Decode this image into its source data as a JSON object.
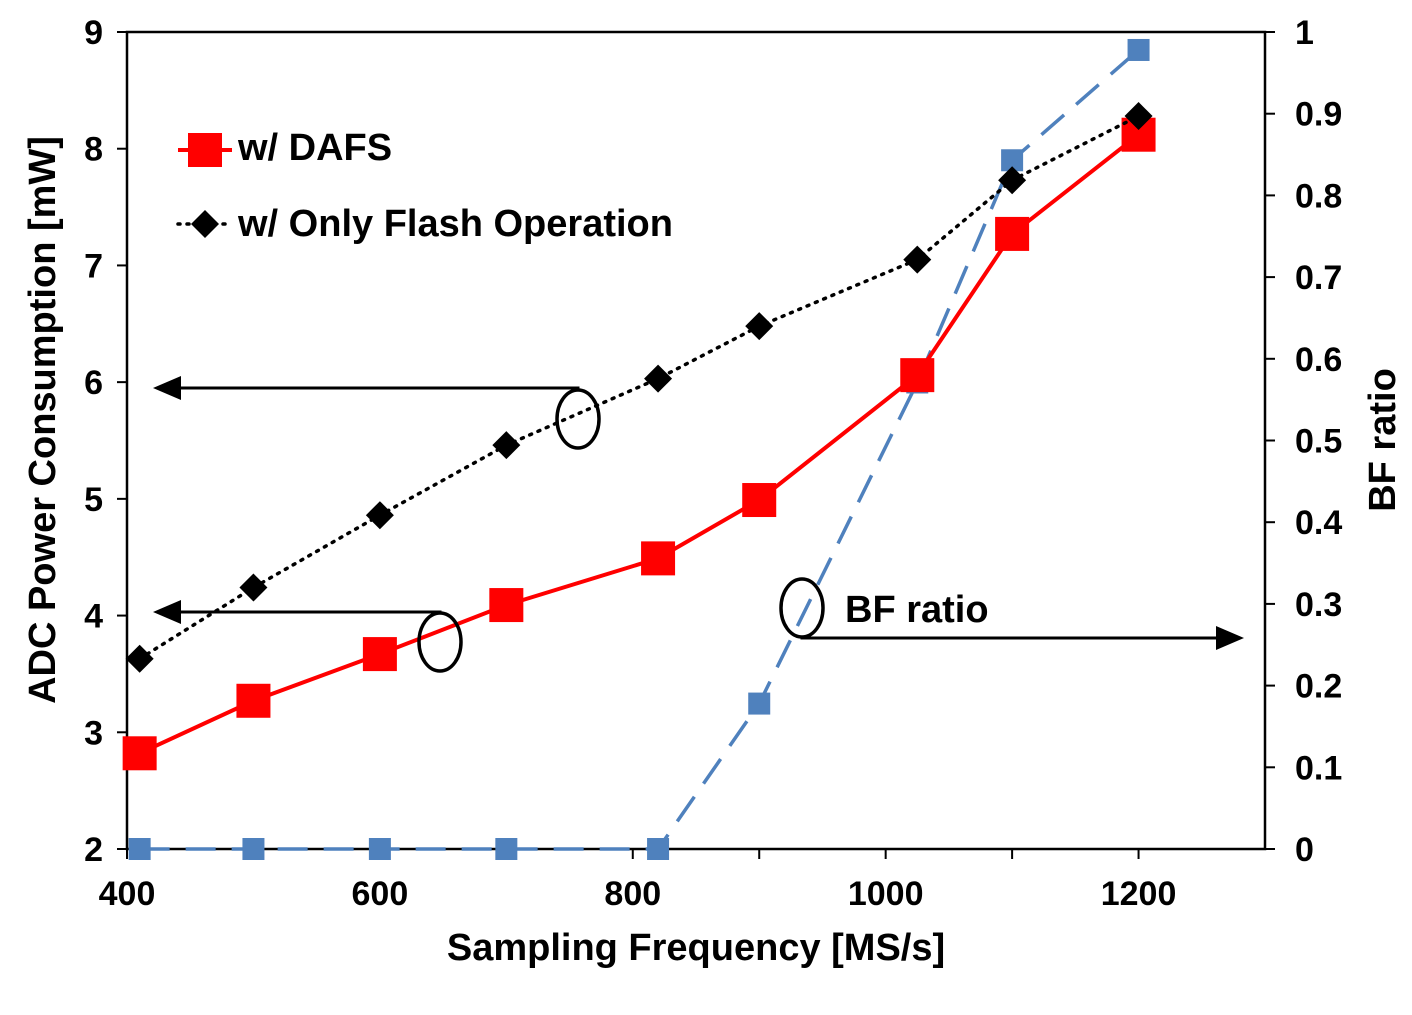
{
  "chart_data": {
    "type": "line",
    "title": "",
    "xlabel": "Sampling Frequency [MS/s]",
    "ylabel": "ADC Power Consumption [mW]",
    "y2label": "BF ratio",
    "xlim": [
      400,
      1300
    ],
    "ylim": [
      2,
      9
    ],
    "y2lim": [
      0,
      1
    ],
    "xticks": [
      "400",
      "600",
      "800",
      "1000",
      "1200"
    ],
    "yticks": [
      "2",
      "3",
      "4",
      "5",
      "6",
      "7",
      "8",
      "9"
    ],
    "y2ticks": [
      "0",
      "0.1",
      "0.2",
      "0.3",
      "0.4",
      "0.5",
      "0.6",
      "0.7",
      "0.8",
      "0.9",
      "1"
    ],
    "grid": false,
    "legend_position": "top-left",
    "series": [
      {
        "name": "w/  DAFS",
        "axis": "left",
        "color": "#ff0000",
        "style": "solid",
        "marker": "square",
        "x": [
          410,
          500,
          600,
          700,
          820,
          900,
          1025,
          1100,
          1200
        ],
        "y": [
          2.82,
          3.27,
          3.67,
          4.09,
          4.49,
          4.99,
          6.06,
          7.27,
          8.12
        ]
      },
      {
        "name": "w/ Only Flash Operation",
        "axis": "left",
        "color": "#000000",
        "style": "dotted",
        "marker": "diamond",
        "x": [
          410,
          500,
          600,
          700,
          820,
          900,
          1025,
          1100,
          1200
        ],
        "y": [
          3.63,
          4.24,
          4.86,
          5.46,
          6.03,
          6.48,
          7.05,
          7.73,
          8.28
        ]
      },
      {
        "name": "BF ratio",
        "axis": "right",
        "color": "#4f81bd",
        "style": "dashed",
        "marker": "square",
        "x": [
          410,
          500,
          600,
          700,
          820,
          900,
          1025,
          1100,
          1200
        ],
        "y": [
          0,
          0,
          0,
          0,
          0,
          0.178,
          0.571,
          0.843,
          0.978
        ]
      }
    ],
    "annotations": [
      {
        "label": "BF ratio",
        "points_to": "right-axis"
      },
      {
        "label": "",
        "points_to": "left-axis"
      },
      {
        "label": "",
        "points_to": "left-axis"
      }
    ]
  }
}
